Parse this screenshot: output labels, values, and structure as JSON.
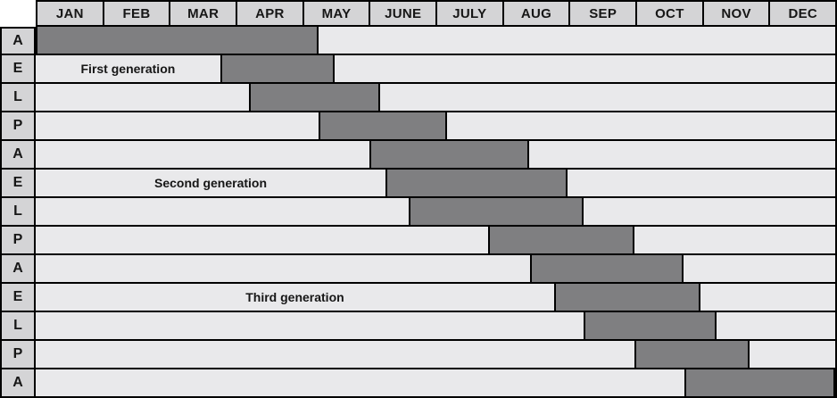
{
  "colors": {
    "header_bg": "#d4d4d6",
    "row_bg": "#e9e9eb",
    "bar_fill": "#7f7f81",
    "border": "#000000",
    "text": "#161616"
  },
  "chart_data": {
    "type": "bar",
    "subtype": "gantt",
    "title": "",
    "orientation": "horizontal",
    "x_axis": {
      "unit": "month",
      "tick_labels": [
        "JAN",
        "FEB",
        "MAR",
        "APR",
        "MAY",
        "JUNE",
        "JULY",
        "AUG",
        "SEP",
        "OCT",
        "NOV",
        "DEC"
      ],
      "min_month": 0,
      "max_month": 12,
      "grid": "column separators in header row only"
    },
    "categories": [
      "A",
      "E",
      "L",
      "P",
      "A",
      "E",
      "L",
      "P",
      "A",
      "E",
      "L",
      "P",
      "A"
    ],
    "bars": [
      {
        "row_index": 0,
        "label": "A",
        "start_month": 0.0,
        "end_month": 4.24
      },
      {
        "row_index": 1,
        "label": "E",
        "start_month": 2.77,
        "end_month": 4.49
      },
      {
        "row_index": 2,
        "label": "L",
        "start_month": 3.2,
        "end_month": 5.17
      },
      {
        "row_index": 3,
        "label": "P",
        "start_month": 4.24,
        "end_month": 6.18
      },
      {
        "row_index": 4,
        "label": "A",
        "start_month": 5.01,
        "end_month": 7.41
      },
      {
        "row_index": 5,
        "label": "E",
        "start_month": 5.25,
        "end_month": 7.98
      },
      {
        "row_index": 6,
        "label": "L",
        "start_month": 5.6,
        "end_month": 8.22
      },
      {
        "row_index": 7,
        "label": "P",
        "start_month": 6.79,
        "end_month": 8.98
      },
      {
        "row_index": 8,
        "label": "A",
        "start_month": 7.42,
        "end_month": 9.73
      },
      {
        "row_index": 9,
        "label": "E",
        "start_month": 7.78,
        "end_month": 9.98
      },
      {
        "row_index": 10,
        "label": "L",
        "start_month": 8.22,
        "end_month": 10.22
      },
      {
        "row_index": 11,
        "label": "P",
        "start_month": 8.99,
        "end_month": 10.71
      },
      {
        "row_index": 12,
        "label": "A",
        "start_month": 9.73,
        "end_month": 12.0
      }
    ],
    "annotations": [
      {
        "row_index": 1,
        "text": "First generation",
        "placement": "centered-left-of-bar"
      },
      {
        "row_index": 5,
        "text": "Second generation",
        "placement": "centered-left-of-bar"
      },
      {
        "row_index": 9,
        "text": "Third generation",
        "placement": "centered-left-of-bar"
      }
    ],
    "legend": "none"
  }
}
